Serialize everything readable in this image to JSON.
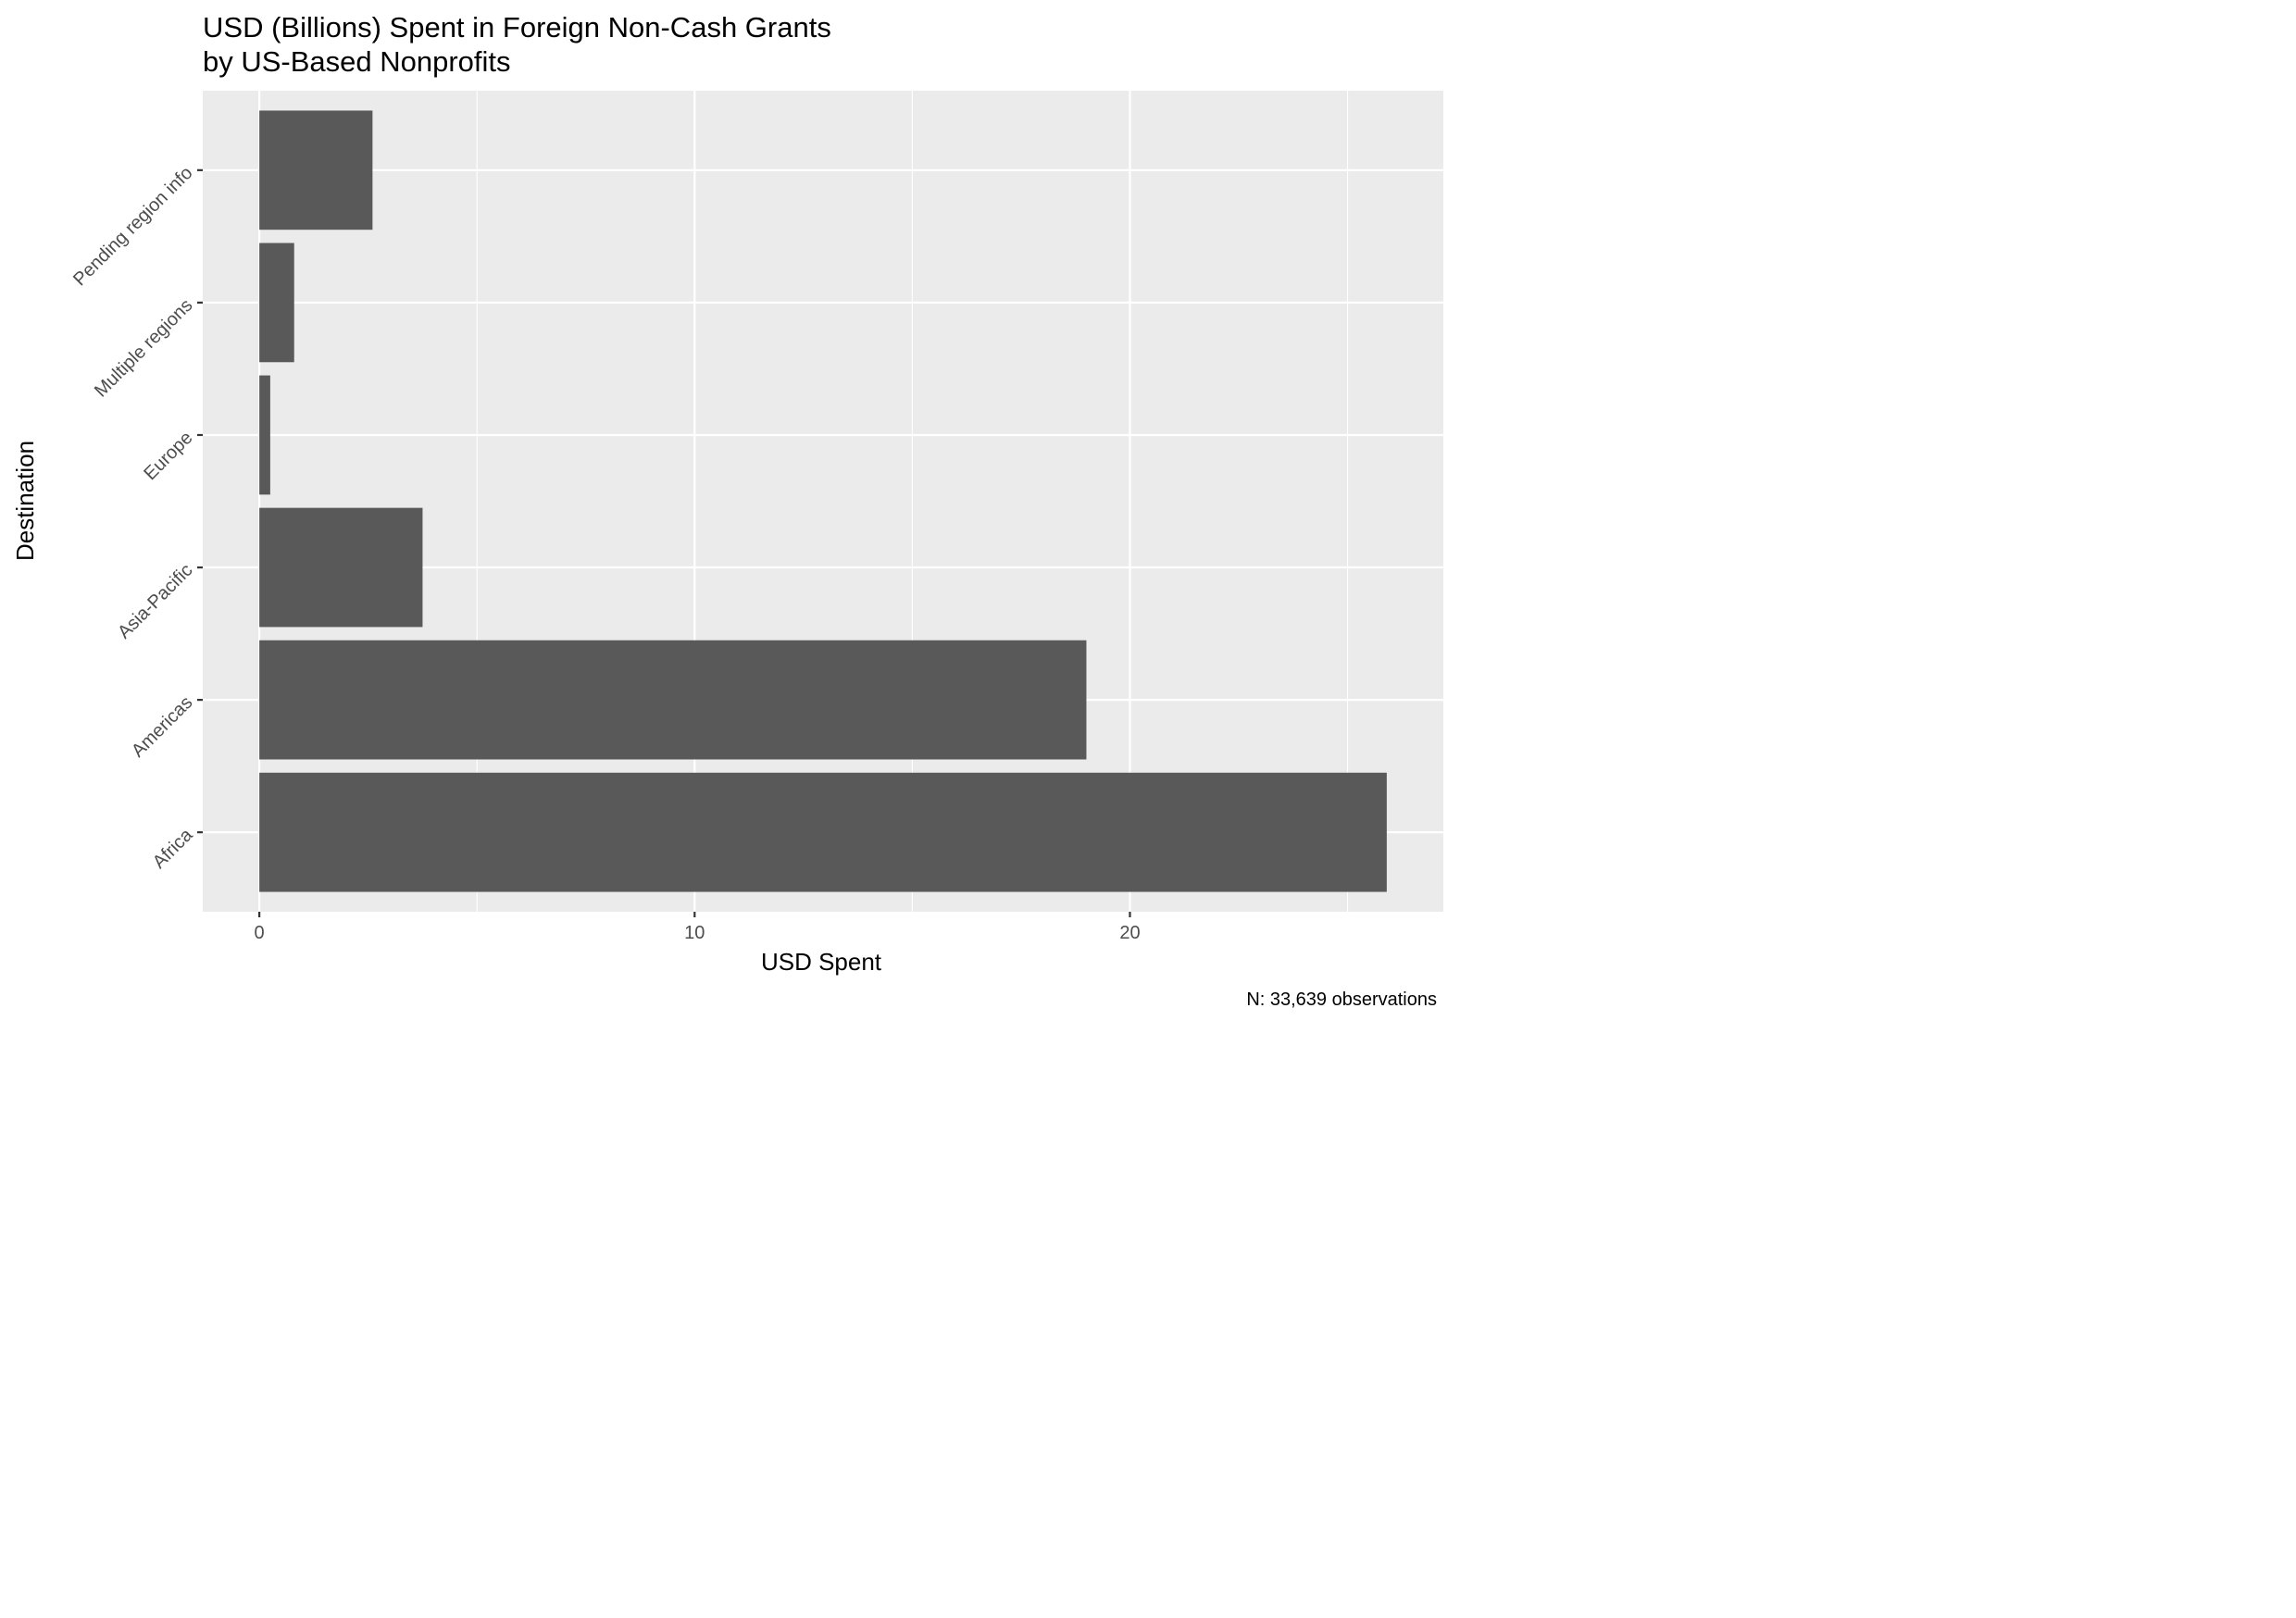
{
  "chart_data": {
    "type": "bar",
    "orientation": "horizontal",
    "title": "USD (Billions) Spent in Foreign Non-Cash Grants",
    "subtitle": "by US-Based Nonprofits",
    "xlabel": "USD Spent",
    "ylabel": "Destination",
    "caption": "N: 33,639 observations",
    "categories": [
      "Africa",
      "Americas",
      "Asia-Pacific",
      "Europe",
      "Multiple regions",
      "Pending region info"
    ],
    "values": [
      25.9,
      19.0,
      3.75,
      0.25,
      0.8,
      2.6
    ],
    "xlim": [
      -1.3,
      27.2
    ],
    "xticks": [
      0,
      10,
      20
    ],
    "xtick_labels": [
      "0",
      "10",
      "20"
    ],
    "grid": true,
    "legend": "none",
    "colors": {
      "bar": "#595959",
      "panel": "#ebebeb",
      "grid": "#ffffff",
      "tick_text": "#4d4d4d",
      "text": "#000000"
    }
  }
}
